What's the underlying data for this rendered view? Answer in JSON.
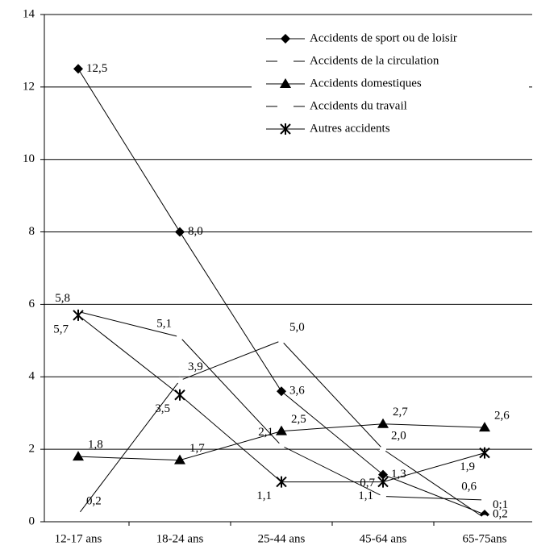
{
  "chart_data": {
    "type": "line",
    "categories": [
      "12-17 ans",
      "18-24 ans",
      "25-44 ans",
      "45-64 ans",
      "65-75ans"
    ],
    "series": [
      {
        "name": "Accidents de sport ou de loisir",
        "color": "#000000",
        "marker": "diamond",
        "values": [
          12.5,
          8.0,
          3.6,
          1.3,
          0.2
        ],
        "value_labels": [
          "12,5",
          "8,0",
          "3,6",
          "1,3",
          "0,2"
        ]
      },
      {
        "name": "Accidents de la circulation",
        "color": "#000000",
        "marker": "none",
        "values": [
          5.8,
          5.1,
          2.1,
          0.7,
          0.6
        ],
        "value_labels": [
          "5,8",
          "5,1",
          "2,1",
          "0,7",
          "0,6"
        ]
      },
      {
        "name": "Accidents domestiques",
        "color": "#000000",
        "marker": "triangle",
        "values": [
          1.8,
          1.7,
          2.5,
          2.7,
          2.6
        ],
        "value_labels": [
          "1,8",
          "1,7",
          "2,5",
          "2,7",
          "2,6"
        ]
      },
      {
        "name": "Accidents du travail",
        "color": "#000000",
        "marker": "none",
        "values": [
          0.2,
          3.9,
          5.0,
          2.0,
          0.1
        ],
        "value_labels": [
          "0,2",
          "3,9",
          "5,0",
          "2,0",
          "0;1"
        ]
      },
      {
        "name": "Autres accidents",
        "color": "#000000",
        "marker": "asterisk",
        "values": [
          5.7,
          3.5,
          1.1,
          1.1,
          1.9
        ],
        "value_labels": [
          "5,7",
          "3,5",
          "1,1",
          "1,1",
          "1,9"
        ]
      }
    ],
    "ylim": [
      0,
      14
    ],
    "yticks": [
      0,
      2,
      4,
      6,
      8,
      10,
      12,
      14
    ],
    "grid": true
  }
}
